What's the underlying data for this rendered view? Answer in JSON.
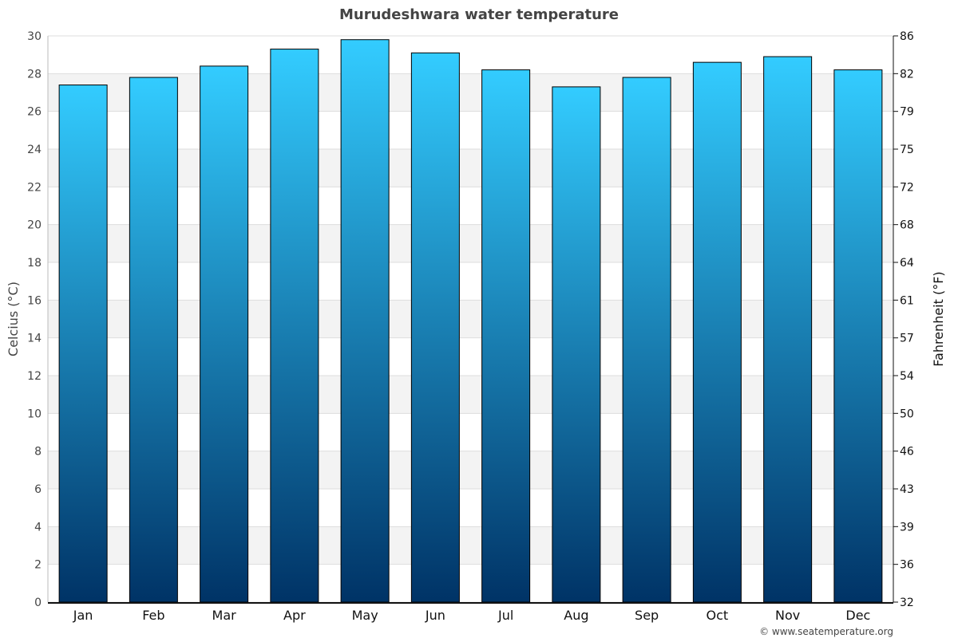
{
  "chart_data": {
    "type": "bar",
    "title": "Murudeshwara water temperature",
    "categories": [
      "Jan",
      "Feb",
      "Mar",
      "Apr",
      "May",
      "Jun",
      "Jul",
      "Aug",
      "Sep",
      "Oct",
      "Nov",
      "Dec"
    ],
    "values": [
      27.4,
      27.8,
      28.4,
      29.3,
      29.8,
      29.1,
      28.2,
      27.3,
      27.8,
      28.6,
      28.9,
      28.2
    ],
    "ylabel": "Celcius (°C)",
    "y2label": "Fahrenheit (°F)",
    "ylim": [
      0,
      30
    ],
    "yticks": [
      0,
      2,
      4,
      6,
      8,
      10,
      12,
      14,
      16,
      18,
      20,
      22,
      24,
      26,
      28,
      30
    ],
    "y2ticks": [
      "32",
      "36",
      "39",
      "43",
      "46",
      "50",
      "54",
      "57",
      "61",
      "64",
      "68",
      "72",
      "75",
      "79",
      "82",
      "86"
    ],
    "grid": true,
    "colors": {
      "bar_top": "#33ccff",
      "bar_bottom": "#003366",
      "band": "#f3f3f3"
    }
  },
  "credit": "© www.seatemperature.org"
}
